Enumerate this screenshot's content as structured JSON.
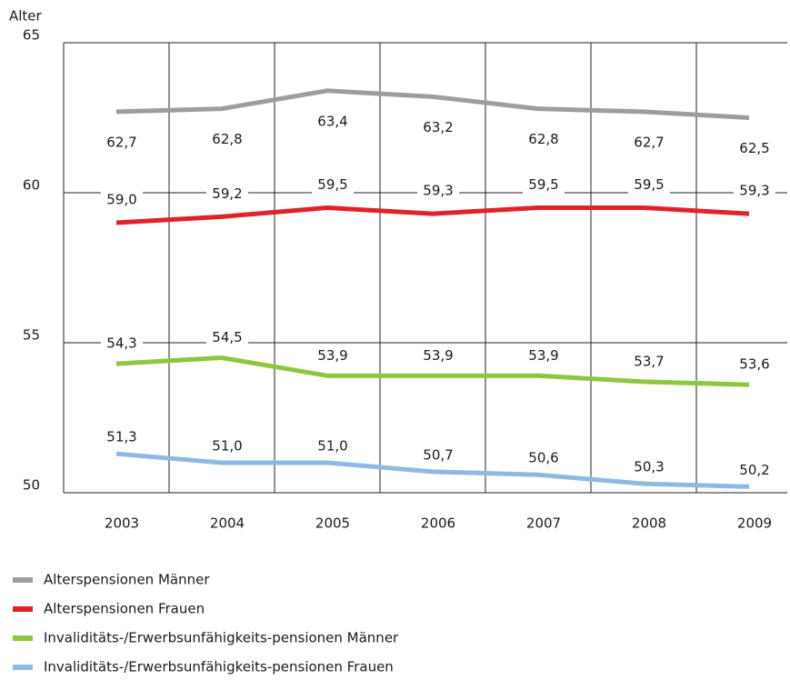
{
  "chart_data": {
    "type": "line",
    "y_label": "Alter",
    "categories": [
      "2003",
      "2004",
      "2005",
      "2006",
      "2007",
      "2008",
      "2009"
    ],
    "series": [
      {
        "name": "Alterspensionen Männer",
        "color": "#9d9ca1",
        "values": [
          62.7,
          62.8,
          63.4,
          63.2,
          62.8,
          62.7,
          62.5
        ]
      },
      {
        "name": "Alterspensionen Frauen",
        "color": "#e2222b",
        "values": [
          59.0,
          59.2,
          59.5,
          59.3,
          59.5,
          59.5,
          59.3
        ],
        "value_labels": [
          "59,0",
          "59,2",
          "59,5",
          "59,3",
          "59,5",
          "59,5",
          "59,3"
        ]
      },
      {
        "name": "Invaliditäts-/Erwerbsunfähigkeits-pensionen Männer",
        "color": "#8dc63f",
        "values": [
          54.3,
          54.5,
          53.9,
          53.9,
          53.9,
          53.7,
          53.6
        ],
        "value_labels": [
          "54,3",
          "54,5",
          "53,9",
          "53,9",
          "53,9",
          "53,7",
          "53,6"
        ]
      },
      {
        "name": "Invaliditäts-/Erwerbsunfähigkeits-pensionen Frauen",
        "color": "#8fb9e3",
        "values": [
          51.3,
          51.0,
          51.0,
          50.7,
          50.6,
          50.3,
          50.2
        ],
        "value_labels": [
          "51,3",
          "51,0",
          "51,0",
          "50,7",
          "50,6",
          "50,3",
          "50,2"
        ]
      }
    ],
    "ylim": [
      50,
      65
    ],
    "yticks": [
      50,
      55,
      60,
      65
    ],
    "grid": true
  }
}
